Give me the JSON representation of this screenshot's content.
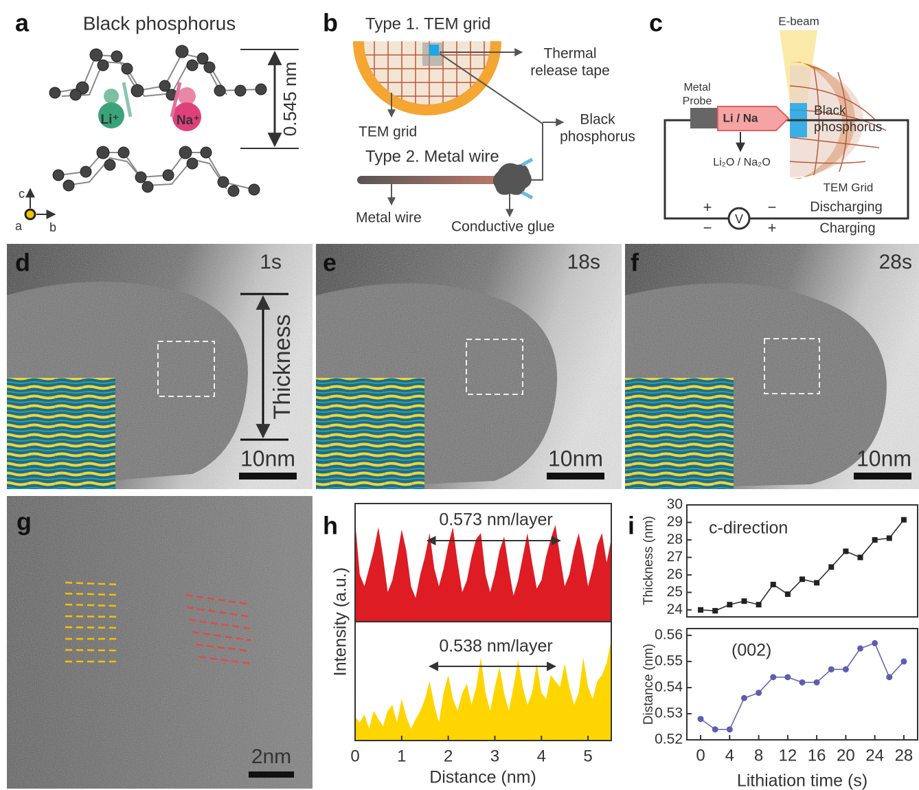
{
  "panel_a": {
    "label": "a",
    "title": "Black phosphorus",
    "spacing": "0.545 nm",
    "ion_li": "Li⁺",
    "ion_na": "Na⁺",
    "axis_c": "c",
    "axis_a": "a",
    "axis_b": "b"
  },
  "panel_b": {
    "label": "b",
    "type1": "Type 1. TEM grid",
    "tape": [
      "Thermal",
      "release tape"
    ],
    "tem_grid": "TEM grid",
    "bp": [
      "Black",
      "phosphorus"
    ],
    "type2": "Type 2. Metal wire",
    "wire": "Metal wire",
    "glue": "Conductive glue"
  },
  "panel_c": {
    "label": "c",
    "ebeam": "E-beam",
    "probe": [
      "Metal",
      "Probe"
    ],
    "li_na": "Li / Na",
    "oxide": "Li₂O / Na₂O",
    "bp": [
      "Black",
      "phosphorus"
    ],
    "grid": "TEM Grid",
    "plus": "+",
    "minus": "−",
    "volt": "V",
    "discharging": "Discharging",
    "charging": "Charging"
  },
  "panel_d": {
    "label": "d",
    "time": "1s",
    "thickness": "Thickness",
    "scale": "10nm"
  },
  "panel_e": {
    "label": "e",
    "time": "18s",
    "scale": "10nm"
  },
  "panel_f": {
    "label": "f",
    "time": "28s",
    "scale": "10nm"
  },
  "panel_g": {
    "label": "g",
    "scale": "2nm"
  },
  "panel_h": {
    "label": "h"
  },
  "panel_i": {
    "label": "i"
  },
  "chart_data": [
    {
      "type": "area",
      "ylabel": "Intensity (a.u.)",
      "annotation": "0.573 nm/layer",
      "span": [
        1.55,
        4.4
      ],
      "color": "#dd1c24",
      "xlim": [
        0,
        5.5
      ],
      "ylim": [
        0,
        100
      ],
      "x": [
        0,
        0.1,
        0.2,
        0.3,
        0.4,
        0.5,
        0.6,
        0.7,
        0.8,
        0.9,
        1.0,
        1.1,
        1.2,
        1.3,
        1.4,
        1.5,
        1.6,
        1.7,
        1.8,
        1.9,
        2.0,
        2.1,
        2.2,
        2.3,
        2.4,
        2.5,
        2.6,
        2.7,
        2.8,
        2.9,
        3.0,
        3.1,
        3.2,
        3.3,
        3.4,
        3.5,
        3.6,
        3.7,
        3.8,
        3.9,
        4.0,
        4.1,
        4.2,
        4.3,
        4.4,
        4.5,
        4.6,
        4.7,
        4.8,
        4.9,
        5.0,
        5.1,
        5.2,
        5.3,
        5.4,
        5.5
      ],
      "values": [
        85,
        40,
        30,
        45,
        60,
        80,
        55,
        25,
        35,
        55,
        78,
        60,
        30,
        20,
        40,
        55,
        75,
        45,
        30,
        45,
        65,
        80,
        50,
        25,
        35,
        55,
        70,
        75,
        40,
        25,
        40,
        60,
        72,
        45,
        22,
        35,
        55,
        75,
        50,
        28,
        35,
        55,
        70,
        82,
        55,
        30,
        40,
        60,
        75,
        55,
        30,
        45,
        65,
        75,
        50,
        70
      ]
    },
    {
      "type": "area",
      "xlabel": "Distance (nm)",
      "annotation": "0.538 nm/layer",
      "span": [
        1.6,
        4.3
      ],
      "color": "#ffd500",
      "xlim": [
        0,
        5.5
      ],
      "ylim": [
        0,
        100
      ],
      "xticks": [
        0,
        1,
        2,
        3,
        4,
        5
      ],
      "x": [
        0,
        0.1,
        0.2,
        0.3,
        0.4,
        0.5,
        0.6,
        0.7,
        0.8,
        0.9,
        1.0,
        1.1,
        1.2,
        1.3,
        1.4,
        1.5,
        1.6,
        1.7,
        1.8,
        1.9,
        2.0,
        2.1,
        2.2,
        2.3,
        2.4,
        2.5,
        2.6,
        2.7,
        2.8,
        2.9,
        3.0,
        3.1,
        3.2,
        3.3,
        3.4,
        3.5,
        3.6,
        3.7,
        3.8,
        3.9,
        4.0,
        4.1,
        4.2,
        4.3,
        4.4,
        4.5,
        4.6,
        4.7,
        4.8,
        4.9,
        5.0,
        5.1,
        5.2,
        5.3,
        5.4,
        5.5
      ],
      "values": [
        20,
        15,
        22,
        10,
        25,
        18,
        12,
        25,
        30,
        15,
        35,
        20,
        10,
        18,
        25,
        35,
        50,
        30,
        15,
        40,
        55,
        35,
        25,
        40,
        48,
        30,
        45,
        70,
        40,
        25,
        45,
        62,
        40,
        25,
        45,
        68,
        45,
        30,
        40,
        65,
        40,
        35,
        55,
        50,
        45,
        65,
        45,
        30,
        40,
        70,
        45,
        35,
        50,
        55,
        65,
        85
      ]
    },
    {
      "type": "line",
      "ylabel": "Thickness (nm)",
      "annotation": "c-direction",
      "color": "#222222",
      "marker": "square",
      "xlim": [
        -1.9,
        29.9
      ],
      "ylim": [
        23.6,
        30
      ],
      "yticks": [
        24,
        25,
        26,
        27,
        28,
        29,
        30
      ],
      "x": [
        0,
        2,
        4,
        6,
        8,
        10,
        12,
        14,
        16,
        18,
        20,
        22,
        24,
        26,
        28
      ],
      "values": [
        24.0,
        23.95,
        24.3,
        24.5,
        24.3,
        25.45,
        24.9,
        25.75,
        25.55,
        26.45,
        27.35,
        27.0,
        28.0,
        28.1,
        29.15
      ]
    },
    {
      "type": "line",
      "ylabel": "Distance (nm)",
      "xlabel": "Lithiation time (s)",
      "annotation": "(002)",
      "color": "#5b5fb0",
      "marker": "circle",
      "xlim": [
        -1.9,
        29.9
      ],
      "ylim": [
        0.52,
        0.5626
      ],
      "yticks": [
        0.52,
        0.53,
        0.54,
        0.55,
        0.56
      ],
      "xticks": [
        0,
        4,
        8,
        12,
        16,
        20,
        24,
        28
      ],
      "x": [
        0,
        2,
        4,
        6,
        8,
        10,
        12,
        14,
        16,
        18,
        20,
        22,
        24,
        26,
        28
      ],
      "values": [
        0.528,
        0.524,
        0.524,
        0.536,
        0.538,
        0.544,
        0.544,
        0.542,
        0.542,
        0.547,
        0.547,
        0.555,
        0.557,
        0.544,
        0.55
      ]
    }
  ]
}
